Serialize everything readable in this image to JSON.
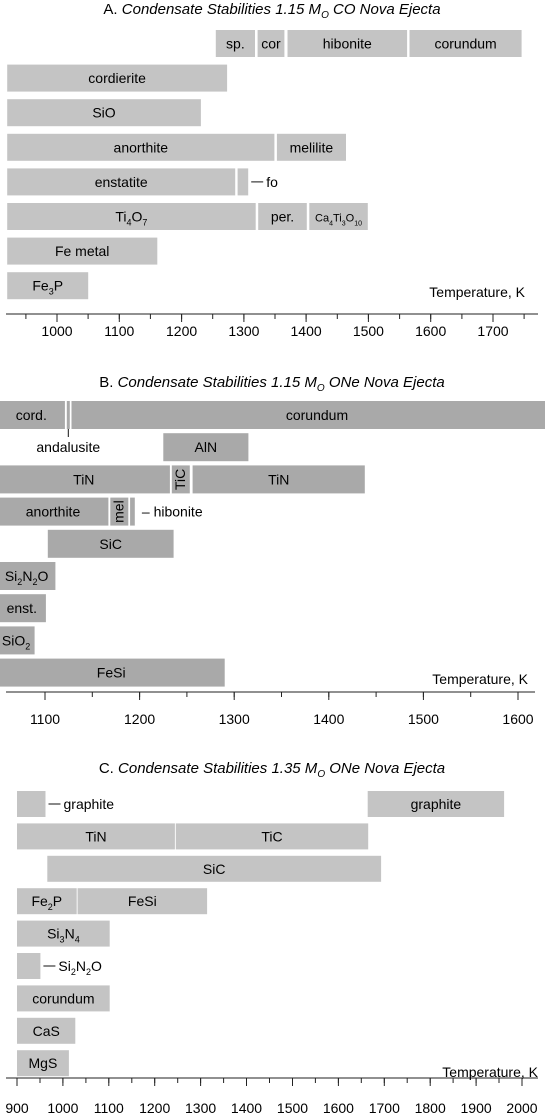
{
  "chart_data": [
    {
      "type": "bar",
      "subtype": "range-bar",
      "letter": "A.",
      "title": "Condensate Stabilities 1.15 M",
      "title_sub": "O",
      "title_tail": "CO Nova Ejecta",
      "xlabel": "Temperature, K",
      "xlim": [
        920,
        1770
      ],
      "ticks": [
        1000,
        1100,
        1200,
        1300,
        1400,
        1500,
        1600,
        1700
      ],
      "color": "#c4c4c4",
      "bars": [
        {
          "row": 0,
          "label": "sp.",
          "x0": 1255,
          "x1": 1318
        },
        {
          "row": 0,
          "label": "cor",
          "x0": 1322,
          "x1": 1365
        },
        {
          "row": 0,
          "label": "hibonite",
          "x0": 1370,
          "x1": 1562
        },
        {
          "row": 0,
          "label": "corundum",
          "x0": 1566,
          "x1": 1746
        },
        {
          "row": 1,
          "label": "cordierite",
          "x0": 920,
          "x1": 1273
        },
        {
          "row": 2,
          "label": "SiO",
          "sub": "2",
          "x0": 920,
          "x1": 1231
        },
        {
          "row": 3,
          "label": "anorthite",
          "x0": 920,
          "x1": 1349
        },
        {
          "row": 3,
          "label": "melilite",
          "x0": 1353,
          "x1": 1464
        },
        {
          "row": 4,
          "label": "enstatite",
          "x0": 920,
          "x1": 1286
        },
        {
          "row": 4,
          "label": "",
          "x0": 1290,
          "x1": 1307,
          "callout": "fo"
        },
        {
          "row": 5,
          "label": "Ti",
          "label_parts": [
            [
              "Ti",
              ""
            ],
            [
              "4",
              "sub"
            ],
            [
              "O",
              ""
            ],
            [
              "7",
              "sub"
            ]
          ],
          "x0": 920,
          "x1": 1319
        },
        {
          "row": 5,
          "label": "per.",
          "x0": 1323,
          "x1": 1401
        },
        {
          "row": 5,
          "label": "Ca4Ti3O10",
          "label_parts": [
            [
              "Ca",
              ""
            ],
            [
              "4",
              "sub"
            ],
            [
              "Ti",
              ""
            ],
            [
              "3",
              "sub"
            ],
            [
              "O",
              ""
            ],
            [
              "10",
              "sub"
            ]
          ],
          "x0": 1405,
          "x1": 1499,
          "small": true
        },
        {
          "row": 6,
          "label": "Fe metal",
          "x0": 920,
          "x1": 1161
        },
        {
          "row": 7,
          "label": "Fe3P",
          "label_parts": [
            [
              "Fe",
              ""
            ],
            [
              "3",
              "sub"
            ],
            [
              "P",
              ""
            ]
          ],
          "x0": 920,
          "x1": 1050
        }
      ]
    },
    {
      "type": "bar",
      "subtype": "range-bar",
      "letter": "B.",
      "title": "Condensate Stabilities 1.15 M",
      "title_sub": "O",
      "title_tail": "ONe Nova Ejecta",
      "xlabel": "Temperature, K",
      "xlim": [
        1050,
        1660
      ],
      "ticks": [
        1100,
        1200,
        1300,
        1400,
        1500,
        1600
      ],
      "color": "#a9a9a9",
      "bars": [
        {
          "row": 0,
          "label": "cord.",
          "x0": 1050,
          "x1": 1121
        },
        {
          "row": 0,
          "label": "",
          "x0": 1123,
          "x1": 1126,
          "callout": "andalusite",
          "callout_below": true
        },
        {
          "row": 0,
          "label": "corundum",
          "x0": 1128,
          "x1": 1647
        },
        {
          "row": 1,
          "label": "AlN",
          "x0": 1225,
          "x1": 1315
        },
        {
          "row": 2,
          "label": "TiN",
          "x0": 1050,
          "x1": 1232
        },
        {
          "row": 2,
          "label": "TiC",
          "x0": 1234,
          "x1": 1253,
          "vertical": true
        },
        {
          "row": 2,
          "label": "TiN",
          "x0": 1256,
          "x1": 1438
        },
        {
          "row": 3,
          "label": "anorthite",
          "x0": 1050,
          "x1": 1167
        },
        {
          "row": 3,
          "label": "mel",
          "x0": 1169,
          "x1": 1188,
          "vertical": true
        },
        {
          "row": 3,
          "label": "",
          "x0": 1190,
          "x1": 1195,
          "callout": "– hibonite"
        },
        {
          "row": 4,
          "label": "SiC",
          "x0": 1103,
          "x1": 1236
        },
        {
          "row": 5,
          "label": "Si2N2O",
          "label_parts": [
            [
              "Si",
              ""
            ],
            [
              "2",
              "sub"
            ],
            [
              "N",
              ""
            ],
            [
              "2",
              "sub"
            ],
            [
              "O",
              ""
            ]
          ],
          "x0": 1050,
          "x1": 1111
        },
        {
          "row": 6,
          "label": "enst.",
          "x0": 1050,
          "x1": 1101
        },
        {
          "row": 7,
          "label": "SiO2",
          "label_parts": [
            [
              "SiO",
              ""
            ],
            [
              "2",
              "sub"
            ]
          ],
          "x0": 1050,
          "x1": 1089
        },
        {
          "row": 8,
          "label": "FeSi",
          "x0": 1050,
          "x1": 1290
        }
      ]
    },
    {
      "type": "bar",
      "subtype": "range-bar",
      "letter": "C.",
      "title": "Condensate Stabilities 1.35 M",
      "title_sub": "O",
      "title_tail": "ONe Nova Ejecta",
      "xlabel": "Temperature, K",
      "xlim": [
        900,
        2030
      ],
      "ticks": [
        900,
        1000,
        1100,
        1200,
        1300,
        1400,
        1500,
        1600,
        1700,
        1800,
        1900,
        2000
      ],
      "color": "#c4c4c4",
      "bars": [
        {
          "row": 0,
          "label": "",
          "x0": 900,
          "x1": 962,
          "callout": "graphite"
        },
        {
          "row": 0,
          "label": "graphite",
          "x0": 1664,
          "x1": 1961
        },
        {
          "row": 1,
          "label": "TiN",
          "x0": 900,
          "x1": 1244
        },
        {
          "row": 1,
          "label": "TiC",
          "x0": 1246,
          "x1": 1665
        },
        {
          "row": 2,
          "label": "SiC",
          "x0": 966,
          "x1": 1693
        },
        {
          "row": 3,
          "label": "Fe2P",
          "label_parts": [
            [
              "Fe",
              ""
            ],
            [
              "2",
              "sub"
            ],
            [
              "P",
              ""
            ]
          ],
          "x0": 900,
          "x1": 1030
        },
        {
          "row": 3,
          "label": "FeSi",
          "x0": 1032,
          "x1": 1314
        },
        {
          "row": 4,
          "label": "Si3N4",
          "label_parts": [
            [
              "Si",
              ""
            ],
            [
              "3",
              "sub"
            ],
            [
              "N",
              ""
            ],
            [
              "4",
              "sub"
            ]
          ],
          "x0": 900,
          "x1": 1102
        },
        {
          "row": 5,
          "label": "",
          "x0": 900,
          "x1": 951,
          "callout": "Si2N2O",
          "callout_parts": [
            [
              "Si",
              ""
            ],
            [
              "2",
              "sub"
            ],
            [
              "N",
              ""
            ],
            [
              "2",
              "sub"
            ],
            [
              "O",
              ""
            ]
          ]
        },
        {
          "row": 6,
          "label": "corundum",
          "x0": 900,
          "x1": 1102
        },
        {
          "row": 7,
          "label": "CaS",
          "x0": 900,
          "x1": 1027
        },
        {
          "row": 8,
          "label": "MgS",
          "x0": 900,
          "x1": 1013
        }
      ]
    }
  ]
}
